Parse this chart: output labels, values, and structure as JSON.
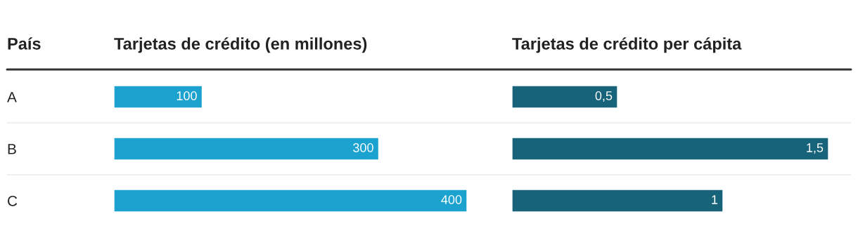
{
  "chart_data": [
    {
      "type": "bar",
      "orientation": "horizontal",
      "title": "Tarjetas de crédito (en millones)",
      "ylabel": "País",
      "categories": [
        "A",
        "B",
        "C"
      ],
      "values": [
        100,
        300,
        400
      ],
      "color": "#1ba2cf",
      "xlim": [
        0,
        400
      ],
      "data_labels": true,
      "tick_labels": "y",
      "grid": false,
      "legend": false
    },
    {
      "type": "bar",
      "orientation": "horizontal",
      "title": "Tarjetas de crédito per cápita",
      "categories": [
        null,
        null,
        null
      ],
      "values": [
        0.5,
        1.5,
        1
      ],
      "value_labels": [
        "0,5",
        "1,5",
        "1"
      ],
      "color": "#17637a",
      "xlim": [
        0,
        1.5
      ],
      "tick_labels": false,
      "grid": false,
      "legend": false
    }
  ]
}
